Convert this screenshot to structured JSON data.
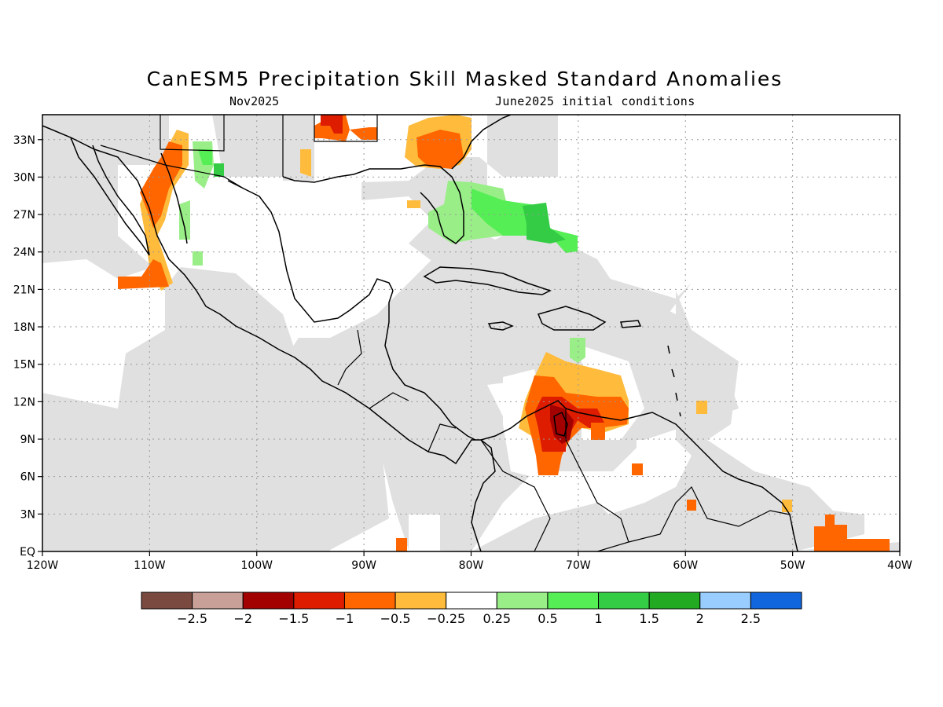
{
  "map": {
    "title": "CanESM5 Precipitation Skill Masked Standard Anomalies",
    "valid_month": "Nov2025",
    "initial_conditions": "June2025 initial conditions",
    "lon_range": [
      -120,
      -40
    ],
    "lat_range": [
      0,
      35
    ],
    "grid": true,
    "lon_ticks": [
      {
        "value": -120,
        "label": "120W"
      },
      {
        "value": -110,
        "label": "110W"
      },
      {
        "value": -100,
        "label": "100W"
      },
      {
        "value": -90,
        "label": "90W"
      },
      {
        "value": -80,
        "label": "80W"
      },
      {
        "value": -70,
        "label": "70W"
      },
      {
        "value": -60,
        "label": "60W"
      },
      {
        "value": -50,
        "label": "50W"
      },
      {
        "value": -40,
        "label": "40W"
      }
    ],
    "lat_ticks": [
      {
        "value": 0,
        "label": "EQ"
      },
      {
        "value": 3,
        "label": "3N"
      },
      {
        "value": 6,
        "label": "6N"
      },
      {
        "value": 9,
        "label": "9N"
      },
      {
        "value": 12,
        "label": "12N"
      },
      {
        "value": 15,
        "label": "15N"
      },
      {
        "value": 18,
        "label": "18N"
      },
      {
        "value": 21,
        "label": "21N"
      },
      {
        "value": 24,
        "label": "24N"
      },
      {
        "value": 27,
        "label": "27N"
      },
      {
        "value": 30,
        "label": "30N"
      },
      {
        "value": 33,
        "label": "33N"
      }
    ]
  },
  "colorbar": {
    "colors": [
      "#7a4a40",
      "#c9a098",
      "#a30000",
      "#dd1c00",
      "#ff6600",
      "#ffbb3c",
      "#ffffff",
      "#99ee88",
      "#55ee55",
      "#33cc44",
      "#22aa22",
      "#99ccff",
      "#1166dd"
    ],
    "labels": [
      "-2.5",
      "-2",
      "-1.5",
      "-1",
      "-0.5",
      "-0.25",
      "0.25",
      "0.5",
      "1",
      "1.5",
      "2",
      "2.5"
    ]
  },
  "colors": {
    "masked_gray": "#e0e0e0",
    "grid": "#999999",
    "coast": "#000000"
  }
}
